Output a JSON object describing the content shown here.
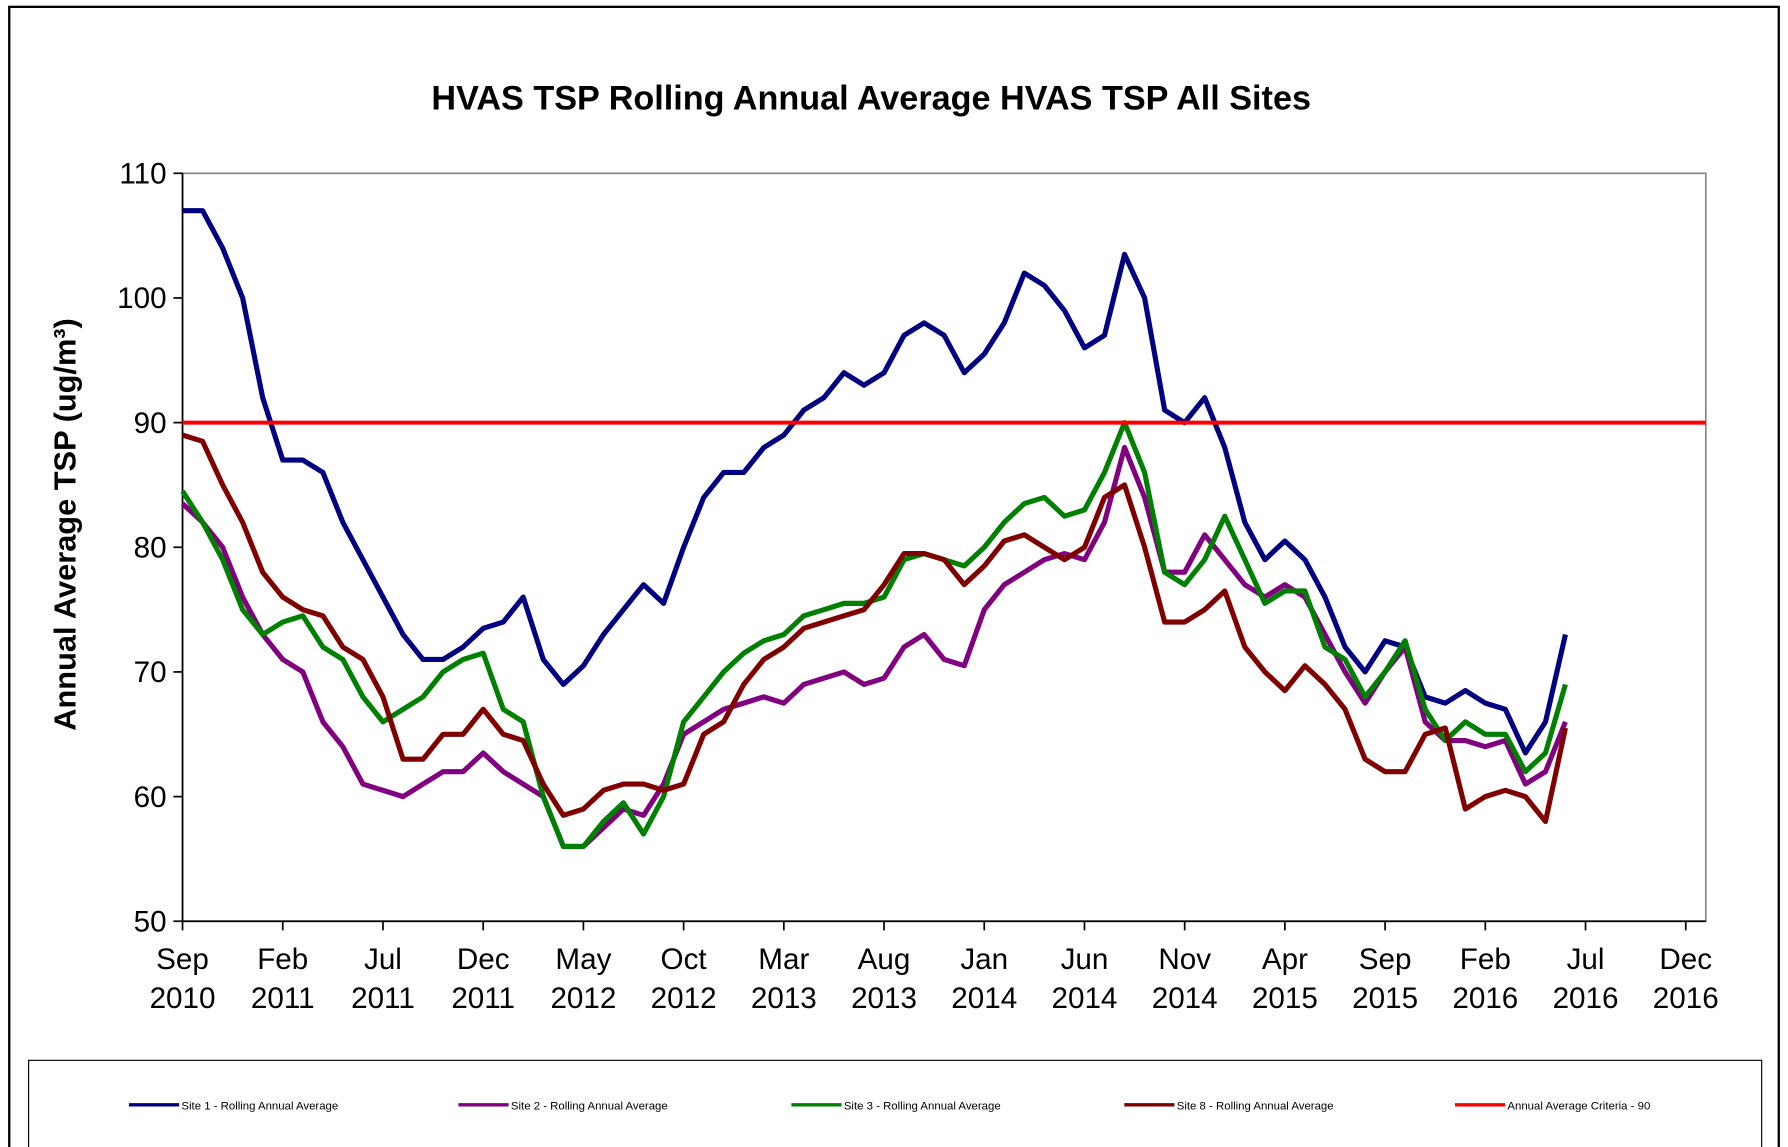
{
  "chart_data": {
    "type": "line",
    "title": "HVAS TSP Rolling Annual Average HVAS TSP All Sites",
    "y_label": "Annual Average TSP (ug/m³)",
    "x": [
      "2010-09",
      "2010-10",
      "2010-11",
      "2010-12",
      "2011-01",
      "2011-02",
      "2011-03",
      "2011-04",
      "2011-05",
      "2011-06",
      "2011-07",
      "2011-08",
      "2011-09",
      "2011-10",
      "2011-11",
      "2011-12",
      "2012-01",
      "2012-02",
      "2012-03",
      "2012-04",
      "2012-05",
      "2012-06",
      "2012-07",
      "2012-08",
      "2012-09",
      "2012-10",
      "2012-11",
      "2012-12",
      "2013-01",
      "2013-02",
      "2013-03",
      "2013-04",
      "2013-05",
      "2013-06",
      "2013-07",
      "2013-08",
      "2013-09",
      "2013-10",
      "2013-11",
      "2013-12",
      "2014-01",
      "2014-02",
      "2014-03",
      "2014-04",
      "2014-05",
      "2014-06",
      "2014-07",
      "2014-08",
      "2014-09",
      "2014-10",
      "2014-11",
      "2014-12",
      "2015-01",
      "2015-02",
      "2015-03",
      "2015-04",
      "2015-05",
      "2015-06",
      "2015-07",
      "2015-08",
      "2015-09",
      "2015-10",
      "2015-11",
      "2015-12",
      "2016-01",
      "2016-02",
      "2016-03",
      "2016-04",
      "2016-05",
      "2016-06"
    ],
    "series": [
      {
        "name": "Site 1 - Rolling Annual Average",
        "color": "#000080",
        "values": [
          107,
          107,
          104,
          100,
          92,
          87,
          87,
          86,
          82,
          79,
          76,
          73,
          71,
          71,
          72,
          73.5,
          74,
          76,
          71,
          69,
          70.5,
          73,
          75,
          77,
          75.5,
          80,
          84,
          86,
          86,
          88,
          89,
          91,
          92,
          94,
          93,
          94,
          97,
          98,
          97,
          94,
          95.5,
          98,
          102,
          101,
          99,
          96,
          97,
          103.5,
          100,
          91,
          90,
          92,
          88,
          82,
          79,
          80.5,
          79,
          76,
          72,
          70,
          72.5,
          72,
          68,
          67.5,
          68.5,
          67.5,
          67,
          63.5,
          66,
          73
        ]
      },
      {
        "name": "Site 2 - Rolling Annual Average",
        "color": "#800080",
        "values": [
          83.5,
          82,
          80,
          76,
          73,
          71,
          70,
          66,
          64,
          61,
          60.5,
          60,
          61,
          62,
          62,
          63.5,
          62,
          61,
          60,
          56,
          56,
          57.5,
          59,
          58.5,
          61,
          65,
          66,
          67,
          67.5,
          68,
          67.5,
          69,
          69.5,
          70,
          69,
          69.5,
          72,
          73,
          71,
          70.5,
          75,
          77,
          78,
          79,
          79.5,
          79,
          82,
          88,
          84,
          78,
          78,
          81,
          79,
          77,
          76,
          77,
          76,
          73,
          70,
          67.5,
          70,
          72,
          66,
          64.5,
          64.5,
          64,
          64.5,
          61,
          62,
          66
        ]
      },
      {
        "name": "Site 3 - Rolling Annual Average",
        "color": "#008000",
        "values": [
          84.5,
          82,
          79,
          75,
          73,
          74,
          74.5,
          72,
          71,
          68,
          66,
          67,
          68,
          70,
          71,
          71.5,
          67,
          66,
          60,
          56,
          56,
          58,
          59.5,
          57,
          60,
          66,
          68,
          70,
          71.5,
          72.5,
          73,
          74.5,
          75,
          75.5,
          75.5,
          76,
          79,
          79.5,
          79,
          78.5,
          80,
          82,
          83.5,
          84,
          82.5,
          83,
          86,
          90,
          86,
          78,
          77,
          79,
          82.5,
          79,
          75.5,
          76.5,
          76.5,
          72,
          71,
          68,
          70,
          72.5,
          67,
          64.5,
          66,
          65,
          65,
          62,
          63.5,
          69
        ]
      },
      {
        "name": "Site 8 - Rolling Annual Average",
        "color": "#800000",
        "values": [
          89,
          88.5,
          85,
          82,
          78,
          76,
          75,
          74.5,
          72,
          71,
          68,
          63,
          63,
          65,
          65,
          67,
          65,
          64.5,
          61,
          58.5,
          59,
          60.5,
          61,
          61,
          60.5,
          61,
          65,
          66,
          69,
          71,
          72,
          73.5,
          74,
          74.5,
          75,
          77,
          79.5,
          79.5,
          79,
          77,
          78.5,
          80.5,
          81,
          80,
          79,
          80,
          84,
          85,
          80,
          74,
          74,
          75,
          76.5,
          72,
          70,
          68.5,
          70.5,
          69,
          67,
          63,
          62,
          62,
          65,
          65.5,
          59,
          60,
          60.5,
          60,
          58,
          65.5
        ]
      }
    ],
    "reference_line": {
      "name": "Annual Average Criteria - 90",
      "value": 90,
      "color": "#ff0000"
    },
    "xlim": [
      "2010-09",
      "2017-01"
    ],
    "xticks": [
      {
        "value": "2010-09",
        "label": "Sep 2010"
      },
      {
        "value": "2011-02",
        "label": "Feb 2011"
      },
      {
        "value": "2011-07",
        "label": "Jul 2011"
      },
      {
        "value": "2011-12",
        "label": "Dec 2011"
      },
      {
        "value": "2012-05",
        "label": "May 2012"
      },
      {
        "value": "2012-10",
        "label": "Oct 2012"
      },
      {
        "value": "2013-03",
        "label": "Mar 2013"
      },
      {
        "value": "2013-08",
        "label": "Aug 2013"
      },
      {
        "value": "2014-01",
        "label": "Jan 2014"
      },
      {
        "value": "2014-06",
        "label": "Jun 2014"
      },
      {
        "value": "2014-11",
        "label": "Nov 2014"
      },
      {
        "value": "2015-04",
        "label": "Apr 2015"
      },
      {
        "value": "2015-09",
        "label": "Sep 2015"
      },
      {
        "value": "2016-02",
        "label": "Feb 2016"
      },
      {
        "value": "2016-07",
        "label": "Jul 2016"
      },
      {
        "value": "2016-12",
        "label": "Dec 2016"
      }
    ],
    "ylim": [
      50,
      110
    ],
    "yticks": [
      50,
      60,
      70,
      80,
      90,
      100,
      110
    ],
    "grid": false,
    "legend": "bottom"
  }
}
